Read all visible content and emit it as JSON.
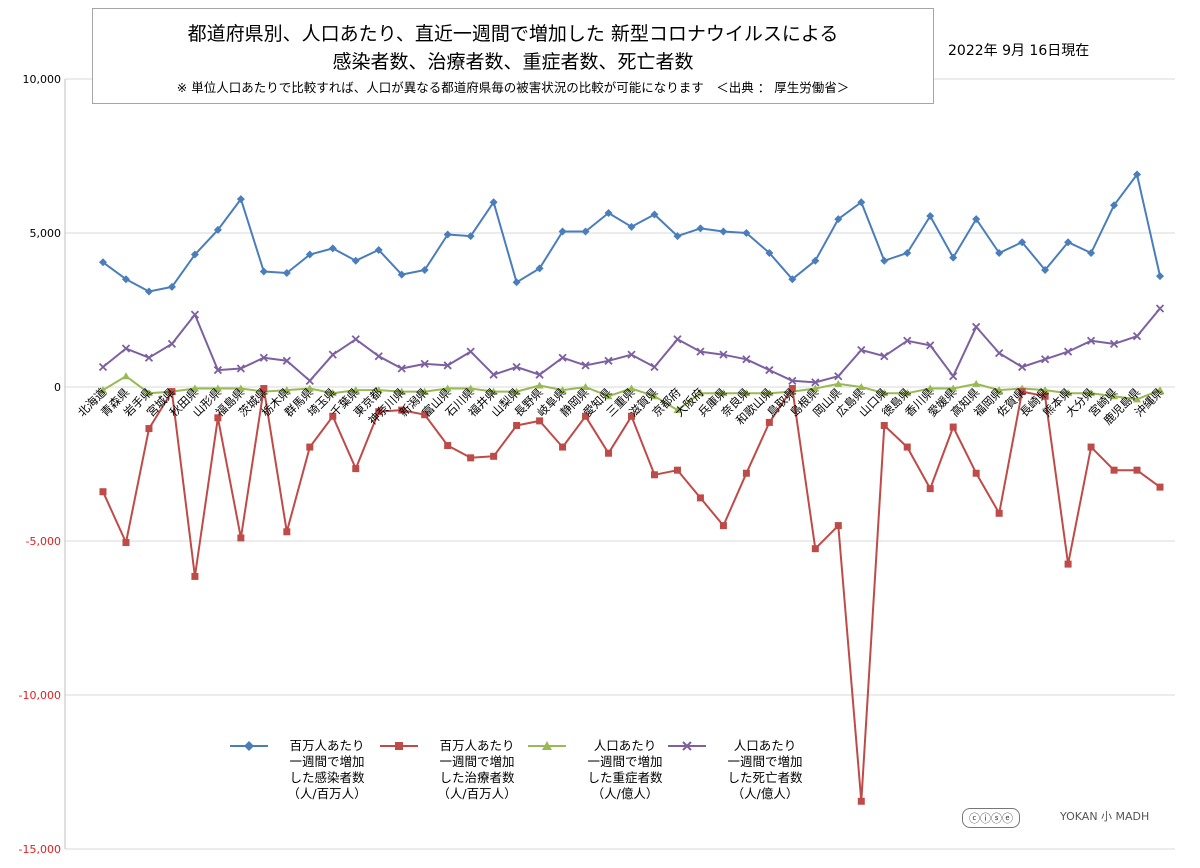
{
  "header": {
    "title_line1": "都道府県別、人口あたり、直近一週間で増加した 新型コロナウイルスによる",
    "title_line2": "感染者数、治療者数、重症者数、死亡者数",
    "note": "※ 単位人口あたりで比較すれば、人口が異なる都道府県毎の被害状況の比較が可能になります　＜出典 ： 厚生労働省＞",
    "date": "2022年 9月 16日現在"
  },
  "colors": {
    "infected": "#4a7ebb",
    "treated": "#be4b48",
    "severe": "#98b954",
    "deaths": "#7d60a0",
    "grid": "#d9d9d9",
    "axis_text": "#000000",
    "negative_text": "#e02020"
  },
  "legend": [
    {
      "key": "infected",
      "text": "百万人あたり\n一週間で増加\nした感染者数\n（人/百万人）",
      "marker": "diamond"
    },
    {
      "key": "treated",
      "text": "百万人あたり\n一週間で増加\nした治療者数\n（人/百万人）",
      "marker": "square"
    },
    {
      "key": "severe",
      "text": "人口あたり\n一週間で増加\nした重症者数\n（人/億人）",
      "marker": "triangle"
    },
    {
      "key": "deaths",
      "text": "人口あたり\n一週間で増加\nした死亡者数\n（人/億人）",
      "marker": "x"
    }
  ],
  "logos": {
    "license": "ⓒⓘⓢⓔ",
    "brand": "YOKAN 小 MADH"
  },
  "chart_data": {
    "type": "line",
    "ylim": [
      -15000,
      10000
    ],
    "yticks": [
      {
        "value": 10000,
        "label": "10,000"
      },
      {
        "value": 5000,
        "label": "5,000"
      },
      {
        "value": 0,
        "label": "0"
      },
      {
        "value": -5000,
        "label": "-5,000"
      },
      {
        "value": -10000,
        "label": "-10,000"
      },
      {
        "value": -15000,
        "label": "-15,000"
      }
    ],
    "grid": true,
    "legend_position": "bottom",
    "categories": [
      "北海道",
      "青森県",
      "岩手県",
      "宮城県",
      "秋田県",
      "山形県",
      "福島県",
      "茨城県",
      "栃木県",
      "群馬県",
      "埼玉県",
      "千葉県",
      "東京都",
      "神奈川県",
      "新潟県",
      "富山県",
      "石川県",
      "福井県",
      "山梨県",
      "長野県",
      "岐阜県",
      "静岡県",
      "愛知県",
      "三重県",
      "滋賀県",
      "京都府",
      "大阪府",
      "兵庫県",
      "奈良県",
      "和歌山県",
      "鳥取県",
      "島根県",
      "岡山県",
      "広島県",
      "山口県",
      "徳島県",
      "香川県",
      "愛媛県",
      "高知県",
      "福岡県",
      "佐賀県",
      "長崎県",
      "熊本県",
      "大分県",
      "宮崎県",
      "鹿児島県",
      "沖縄県"
    ],
    "series": [
      {
        "key": "infected",
        "values": [
          4050,
          3500,
          3100,
          3250,
          4300,
          5100,
          6100,
          3750,
          3700,
          4300,
          4500,
          4100,
          4450,
          3650,
          3800,
          4950,
          4900,
          6000,
          3400,
          3850,
          5050,
          5050,
          5650,
          5200,
          5600,
          4900,
          5150,
          5050,
          5000,
          4350,
          3500,
          4100,
          5450,
          6000,
          4100,
          4350,
          5550,
          4200,
          5450,
          4350,
          4700,
          3800,
          4700,
          4350,
          5900,
          6900,
          3600
        ]
      },
      {
        "key": "treated",
        "values": [
          -3400,
          -5050,
          -1350,
          -150,
          -6150,
          -1000,
          -4900,
          -50,
          -4700,
          -1950,
          -950,
          -2650,
          -800,
          -750,
          -900,
          -1900,
          -2300,
          -2250,
          -1250,
          -1100,
          -1950,
          -950,
          -2150,
          -950,
          -2850,
          -2700,
          -3600,
          -4500,
          -2800,
          -1150,
          -50,
          -5250,
          -4500,
          -13450,
          -1250,
          -1950,
          -3300,
          -1300,
          -2800,
          -4100,
          -150,
          -300,
          -5750,
          -1950,
          -2700,
          -2700,
          -3250
        ]
      },
      {
        "key": "severe",
        "values": [
          -100,
          350,
          -200,
          -150,
          -50,
          -50,
          -50,
          -150,
          -100,
          -50,
          -200,
          -100,
          -100,
          -150,
          -150,
          -50,
          -50,
          -150,
          -150,
          50,
          -100,
          0,
          -300,
          -50,
          -300,
          -750,
          -200,
          -200,
          -200,
          -200,
          -150,
          -50,
          100,
          0,
          -200,
          -200,
          -50,
          -50,
          100,
          -100,
          -50,
          -100,
          -200,
          -200,
          -300,
          -400,
          -100
        ]
      },
      {
        "key": "deaths",
        "values": [
          650,
          1250,
          950,
          1400,
          2350,
          550,
          600,
          950,
          850,
          200,
          1050,
          1550,
          1000,
          600,
          750,
          700,
          1150,
          400,
          650,
          400,
          950,
          700,
          850,
          1050,
          650,
          1550,
          1150,
          1050,
          900,
          550,
          200,
          150,
          350,
          1200,
          1000,
          1500,
          1350,
          350,
          1950,
          1100,
          650,
          900,
          1150,
          1500,
          1400,
          1650,
          2550
        ]
      }
    ]
  }
}
